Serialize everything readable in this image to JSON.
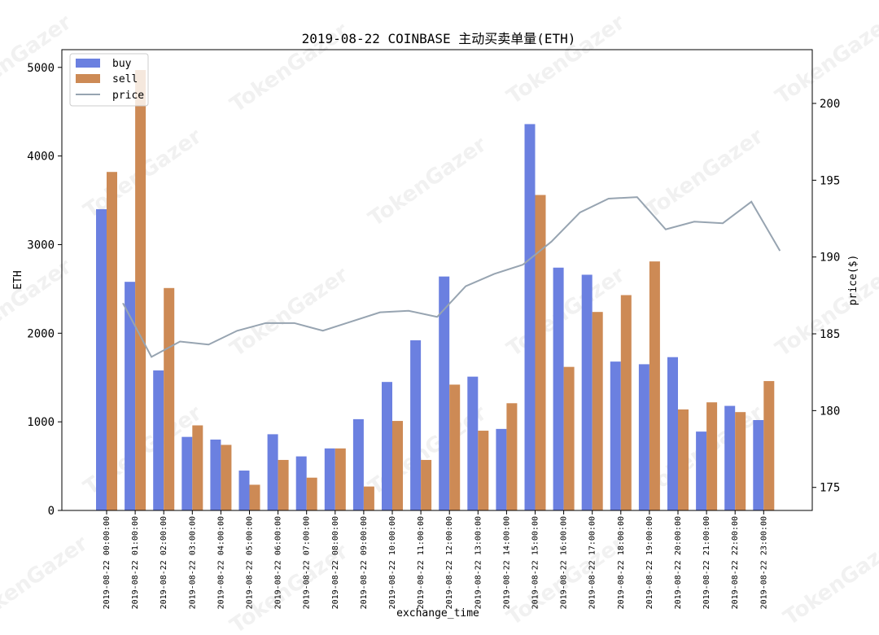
{
  "chart_data": {
    "type": "bar",
    "title": "2019-08-22 COINBASE 主动买卖单量(ETH)",
    "xlabel": "exchange_time",
    "ylabel": "ETH",
    "ylabel_right": "price($)",
    "ylim": [
      0,
      5200
    ],
    "ylim_right": [
      173.5,
      203.5
    ],
    "yticks": [
      0,
      1000,
      2000,
      3000,
      4000,
      5000
    ],
    "yticks_right": [
      175,
      180,
      185,
      190,
      195,
      200
    ],
    "grid": false,
    "legend_position": "top-left",
    "watermark": "TokenGazer",
    "categories": [
      "2019-08-22 00:00:00",
      "2019-08-22 01:00:00",
      "2019-08-22 02:00:00",
      "2019-08-22 03:00:00",
      "2019-08-22 04:00:00",
      "2019-08-22 05:00:00",
      "2019-08-22 06:00:00",
      "2019-08-22 07:00:00",
      "2019-08-22 08:00:00",
      "2019-08-22 09:00:00",
      "2019-08-22 10:00:00",
      "2019-08-22 11:00:00",
      "2019-08-22 12:00:00",
      "2019-08-22 13:00:00",
      "2019-08-22 14:00:00",
      "2019-08-22 15:00:00",
      "2019-08-22 16:00:00",
      "2019-08-22 17:00:00",
      "2019-08-22 18:00:00",
      "2019-08-22 19:00:00",
      "2019-08-22 20:00:00",
      "2019-08-22 21:00:00",
      "2019-08-22 22:00:00",
      "2019-08-22 23:00:00"
    ],
    "series": [
      {
        "name": "buy",
        "type": "bar",
        "axis": "left",
        "color": "#6b80e0",
        "values": [
          3400,
          2580,
          1580,
          830,
          800,
          450,
          860,
          610,
          700,
          1030,
          1450,
          1920,
          2640,
          1510,
          920,
          4360,
          2740,
          2660,
          1680,
          1650,
          1730,
          890,
          1180,
          1020
        ]
      },
      {
        "name": "sell",
        "type": "bar",
        "axis": "left",
        "color": "#cd8a55",
        "values": [
          3820,
          4970,
          2510,
          960,
          740,
          290,
          570,
          370,
          700,
          270,
          1010,
          570,
          1420,
          900,
          1210,
          3560,
          1620,
          2240,
          2430,
          2810,
          1140,
          1220,
          1110,
          1460
        ]
      },
      {
        "name": "price",
        "type": "line",
        "axis": "right",
        "color": "#97a4b1",
        "values": [
          187.0,
          183.5,
          184.5,
          184.3,
          185.2,
          185.7,
          185.7,
          185.2,
          185.8,
          186.4,
          186.5,
          186.1,
          188.1,
          188.9,
          189.5,
          191.0,
          192.9,
          193.8,
          193.9,
          191.8,
          192.3,
          192.2,
          193.6,
          190.4
        ]
      }
    ]
  }
}
